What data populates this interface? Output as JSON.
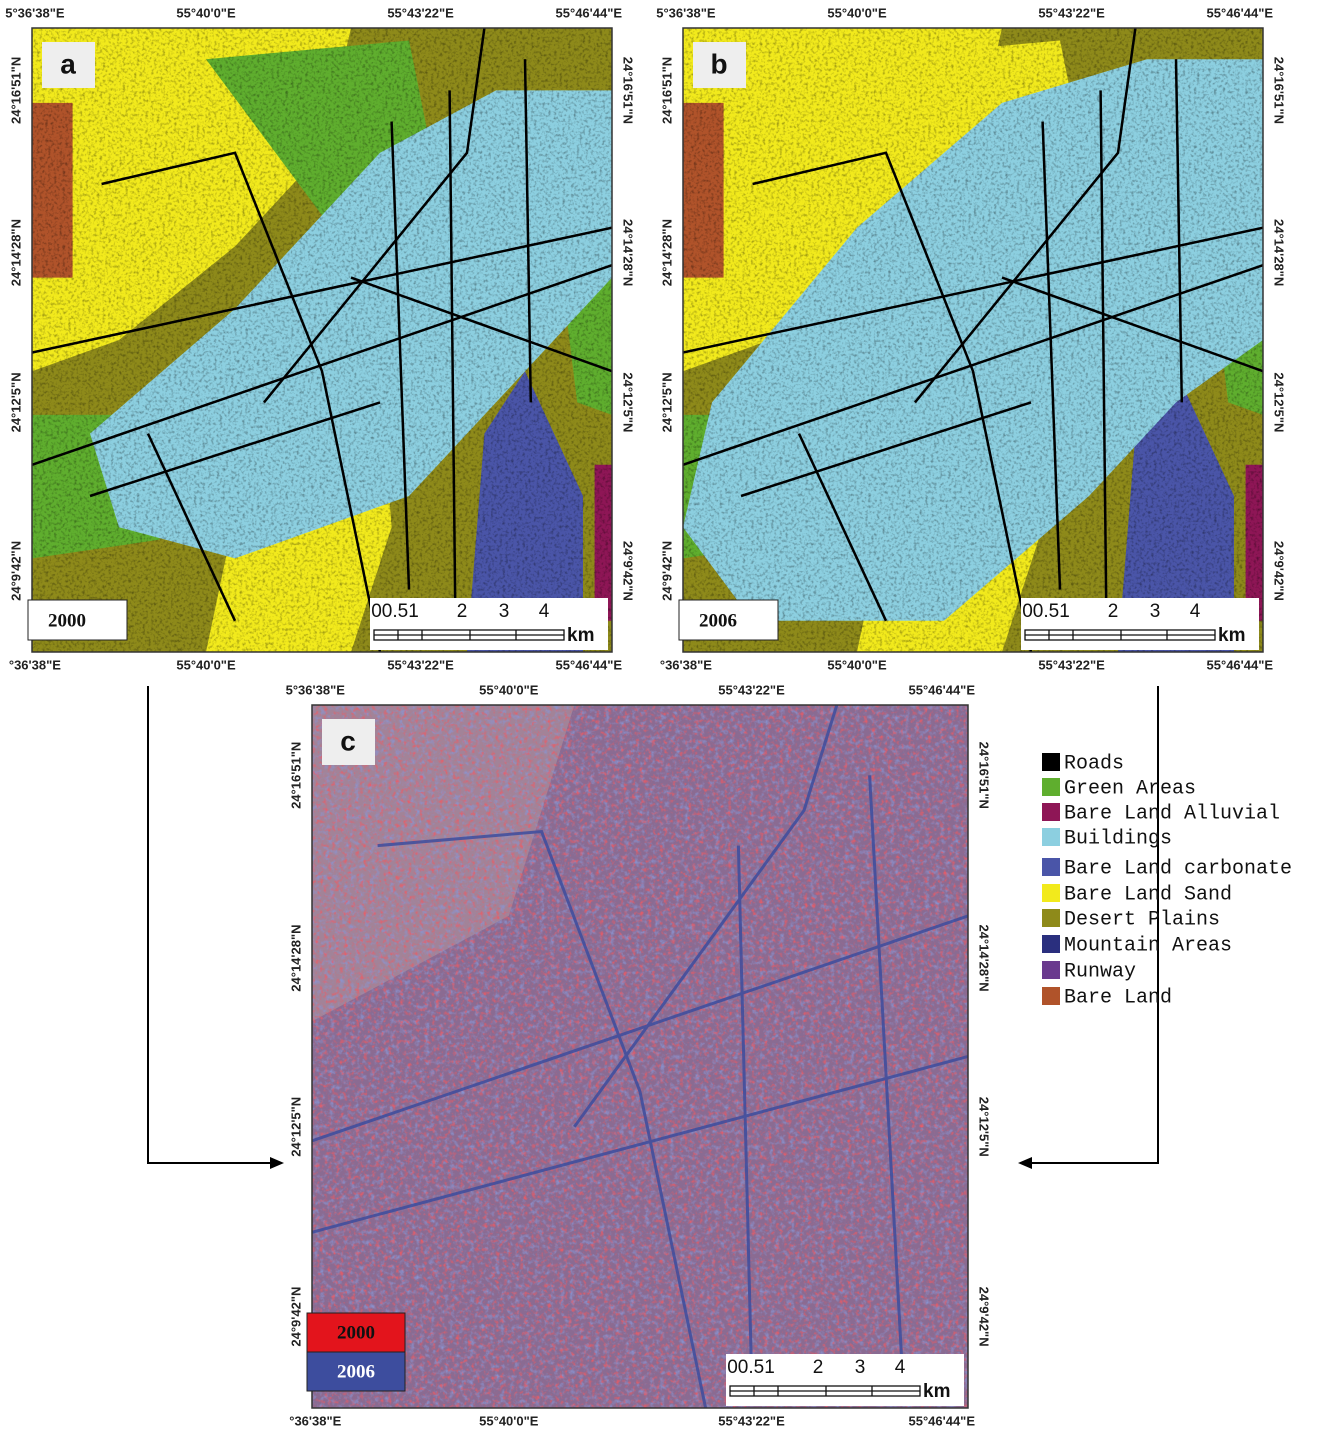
{
  "panels": [
    {
      "letter": "a",
      "year": "2000",
      "top_labels": [
        "5°36'38\"E",
        "55°40'0\"E",
        "55°43'22\"E",
        "55°46'44\"E"
      ],
      "bottom_labels": [
        "°36'38\"E",
        "55°40'0\"E",
        "55°43'22\"E",
        "55°46'44\"E"
      ],
      "left_labels": [
        "24°16'51\"N",
        "24°14'28\"N",
        "24°12'5\"N",
        "24°9'42\"N"
      ],
      "right_labels": [
        "24°16'51\"N",
        "24°14'28\"N",
        "24°12'5\"N",
        "24°9'42\"N"
      ],
      "scale_labels": [
        "00.51",
        "2",
        "3",
        "4"
      ],
      "scale_unit": "km"
    },
    {
      "letter": "b",
      "year": "2006",
      "top_labels": [
        "5°36'38\"E",
        "55°40'0\"E",
        "55°43'22\"E",
        "55°46'44\"E"
      ],
      "bottom_labels": [
        "°36'38\"E",
        "55°40'0\"E",
        "55°43'22\"E",
        "55°46'44\"E"
      ],
      "left_labels": [
        "24°16'51\"N",
        "24°14'28\"N",
        "24°12'5\"N",
        "24°9'42\"N"
      ],
      "right_labels": [
        "24°16'51\"N",
        "24°14'28\"N",
        "24°12'5\"N",
        "24°9'42\"N"
      ],
      "scale_labels": [
        "00.51",
        "2",
        "3",
        "4"
      ],
      "scale_unit": "km"
    },
    {
      "letter": "c",
      "top_labels": [
        "5°36'38\"E",
        "55°40'0\"E",
        "55°43'22\"E",
        "55°46'44\"E"
      ],
      "bottom_labels": [
        "°36'38\"E",
        "55°40'0\"E",
        "55°43'22\"E",
        "55°46'44\"E"
      ],
      "left_labels": [
        "24°16'51\"N",
        "24°14'28\"N",
        "24°12'5\"N",
        "24°9'42\"N"
      ],
      "right_labels": [
        "24°16'51\"N",
        "24°14'28\"N",
        "24°12'5\"N",
        "24°9'42\"N"
      ],
      "scale_labels": [
        "00.51",
        "2",
        "3",
        "4"
      ],
      "scale_unit": "km"
    }
  ],
  "overlay_legend": [
    {
      "label": "2000",
      "color": "#e3141c"
    },
    {
      "label": "2006",
      "color": "#3d4d9e"
    }
  ],
  "legend": [
    {
      "label": "Roads",
      "color": "#000000"
    },
    {
      "label": "Green Areas",
      "color": "#5fae2e"
    },
    {
      "label": "Bare Land Alluvial",
      "color": "#8e1656"
    },
    {
      "label": "Buildings",
      "color": "#8ccfe0"
    },
    {
      "label": "Bare Land carbonate",
      "color": "#4a55a8"
    },
    {
      "label": "Bare Land Sand",
      "color": "#f2ea1c"
    },
    {
      "label": "Desert Plains",
      "color": "#8e8a1a"
    },
    {
      "label": "Mountain Areas",
      "color": "#2a2f7e"
    },
    {
      "label": "Runway",
      "color": "#6a3a8e"
    },
    {
      "label": "Bare Land",
      "color": "#b0532a"
    }
  ]
}
